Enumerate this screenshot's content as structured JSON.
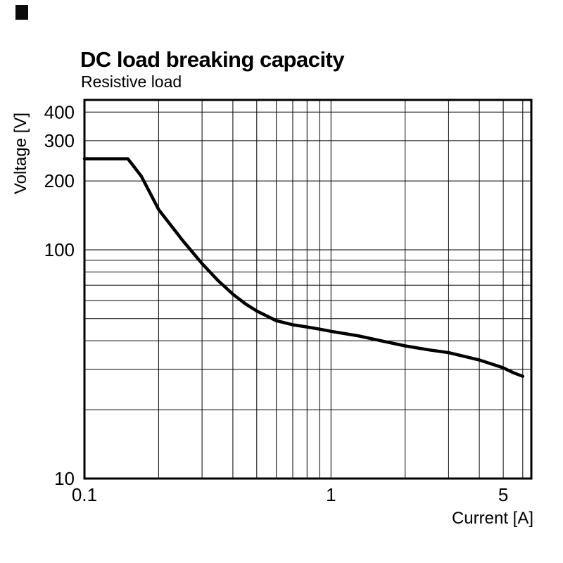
{
  "chart_data": {
    "type": "line",
    "title": "DC load breaking capacity",
    "subtitle": "Resistive load",
    "xlabel": "Current [A]",
    "ylabel": "Voltage [V]",
    "x_scale": "log",
    "y_scale": "log",
    "x_range": [
      0.1,
      6.5
    ],
    "y_range": [
      10,
      452
    ],
    "grid": true,
    "legend": "none",
    "background_color": "#ffffff",
    "grid_color": "#000000",
    "frame_color": "#000000",
    "x_ticks": [
      {
        "value": 0.1,
        "label": "0.1"
      },
      {
        "value": 1,
        "label": "1"
      },
      {
        "value": 5,
        "label": "5"
      }
    ],
    "y_ticks": [
      {
        "value": 400,
        "label": "400"
      },
      {
        "value": 300,
        "label": "300"
      },
      {
        "value": 200,
        "label": "200"
      },
      {
        "value": 100,
        "label": "100"
      },
      {
        "value": 10,
        "label": "10"
      }
    ],
    "x_gridlines": [
      0.1,
      0.2,
      0.3,
      0.4,
      0.5,
      0.6,
      0.7,
      0.8,
      0.9,
      1,
      2,
      3,
      4,
      5,
      6
    ],
    "y_gridlines": [
      10,
      20,
      30,
      40,
      50,
      60,
      70,
      80,
      90,
      100,
      200,
      300,
      400
    ],
    "series": [
      {
        "name": "DC breaking capacity, resistive load",
        "color": "#000000",
        "stroke_width": 4.5,
        "points": [
          [
            0.1,
            250
          ],
          [
            0.15,
            250
          ],
          [
            0.17,
            210
          ],
          [
            0.2,
            150
          ],
          [
            0.25,
            110
          ],
          [
            0.3,
            87
          ],
          [
            0.35,
            73
          ],
          [
            0.4,
            64
          ],
          [
            0.45,
            58
          ],
          [
            0.5,
            54
          ],
          [
            0.6,
            49
          ],
          [
            0.7,
            47
          ],
          [
            0.8,
            46
          ],
          [
            0.9,
            45
          ],
          [
            1.0,
            44
          ],
          [
            1.3,
            42
          ],
          [
            1.6,
            40
          ],
          [
            2.0,
            38
          ],
          [
            2.5,
            36.5
          ],
          [
            3.0,
            35.5
          ],
          [
            4.0,
            33
          ],
          [
            5.0,
            30.5
          ],
          [
            5.5,
            29
          ],
          [
            6.0,
            28
          ]
        ]
      }
    ]
  }
}
